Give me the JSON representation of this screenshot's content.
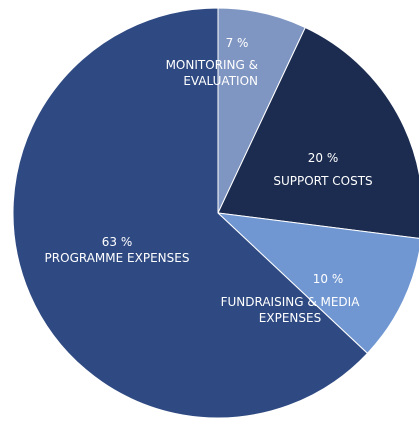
{
  "chart_data": {
    "type": "pie",
    "categories": [
      "MONITORING & EVALUATION",
      "SUPPORT COSTS",
      "FUNDRAISING & MEDIA EXPENSES",
      "PROGRAMME EXPENSES"
    ],
    "values": [
      7,
      20,
      10,
      63
    ],
    "value_labels": [
      "7 %",
      "20 %",
      "10 %",
      "63 %"
    ],
    "colors": [
      "#8096c2",
      "#1b2c50",
      "#7097d2",
      "#2f4a82"
    ]
  }
}
